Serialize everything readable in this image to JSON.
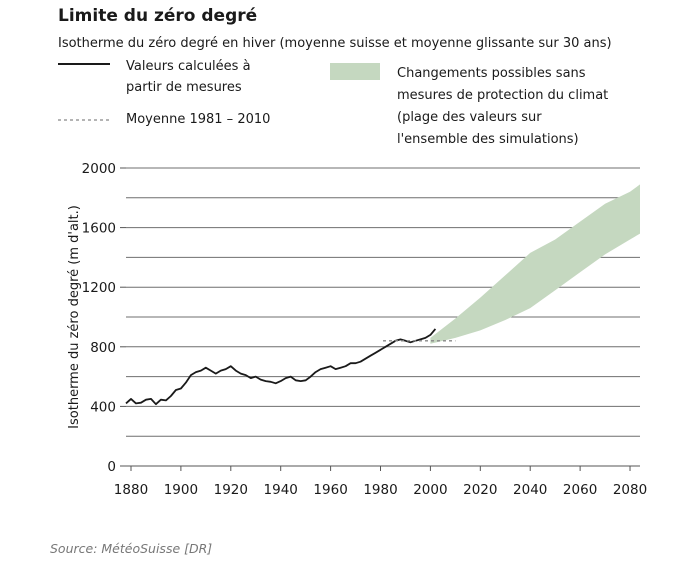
{
  "chart_data": {
    "type": "line",
    "title": "Limite du zéro degré",
    "subtitle": "Isotherme du zéro degré en hiver (moyenne suisse et moyenne glissante sur 30 ans)",
    "ylabel": "Isotherme du zéro degré (m d'alt.)",
    "xlabel": "",
    "xlim": [
      1878,
      2084
    ],
    "ylim": [
      0,
      2000
    ],
    "x_ticks": [
      1880,
      1900,
      1920,
      1940,
      1960,
      1980,
      2000,
      2020,
      2040,
      2060,
      2080
    ],
    "y_ticks": [
      0,
      400,
      800,
      1200,
      1600,
      2000
    ],
    "grid": true,
    "legend": [
      {
        "label": "Valeurs calculées à partir de mesures",
        "style": "solid"
      },
      {
        "label": "Moyenne 1981 – 2010",
        "style": "dashed"
      },
      {
        "label": "Changements possibles sans mesures de protection du climat (plage des valeurs sur l'ensemble des simulations)",
        "style": "band"
      }
    ],
    "series": [
      {
        "name": "Valeurs calculées à partir de mesures",
        "color": "#1a1a1a",
        "x": [
          1878,
          1880,
          1882,
          1884,
          1886,
          1888,
          1890,
          1892,
          1894,
          1896,
          1898,
          1900,
          1902,
          1904,
          1906,
          1908,
          1910,
          1912,
          1914,
          1916,
          1918,
          1920,
          1922,
          1924,
          1926,
          1928,
          1930,
          1932,
          1934,
          1936,
          1938,
          1940,
          1942,
          1944,
          1946,
          1948,
          1950,
          1952,
          1954,
          1956,
          1958,
          1960,
          1962,
          1964,
          1966,
          1968,
          1970,
          1972,
          1974,
          1976,
          1978,
          1980,
          1982,
          1984,
          1986,
          1988,
          1990,
          1992,
          1994,
          1996,
          1998,
          2000,
          2002
        ],
        "y": [
          420,
          450,
          420,
          425,
          445,
          450,
          415,
          445,
          440,
          470,
          510,
          520,
          560,
          610,
          630,
          640,
          660,
          640,
          620,
          640,
          650,
          670,
          640,
          620,
          610,
          590,
          600,
          580,
          570,
          565,
          555,
          570,
          590,
          600,
          575,
          570,
          575,
          600,
          630,
          650,
          660,
          670,
          650,
          660,
          670,
          690,
          690,
          700,
          720,
          740,
          760,
          780,
          800,
          820,
          840,
          850,
          840,
          830,
          840,
          850,
          860,
          880,
          920
        ]
      },
      {
        "name": "Moyenne 1981 – 2010",
        "color": "#888888",
        "x": [
          1981,
          2010
        ],
        "y": [
          840,
          840
        ]
      }
    ],
    "band": {
      "name": "Changements possibles sans mesures de protection du climat",
      "color": "#c5d8c0",
      "x": [
        2000,
        2010,
        2020,
        2030,
        2040,
        2050,
        2060,
        2070,
        2080,
        2084
      ],
      "upper": [
        860,
        990,
        1130,
        1280,
        1430,
        1520,
        1640,
        1760,
        1840,
        1890
      ],
      "lower": [
        820,
        860,
        910,
        980,
        1060,
        1180,
        1300,
        1420,
        1520,
        1560
      ]
    }
  },
  "legend_text": {
    "measured_line1": "Valeurs calculées à",
    "measured_line2": "partir de mesures",
    "mean": "Moyenne 1981 – 2010",
    "band_line1": "Changements possibles sans",
    "band_line2": "mesures de protection du climat",
    "band_line3": "(plage des valeurs sur",
    "band_line4": "l'ensemble des simulations)"
  },
  "source": "Source: MétéoSuisse [DR]"
}
